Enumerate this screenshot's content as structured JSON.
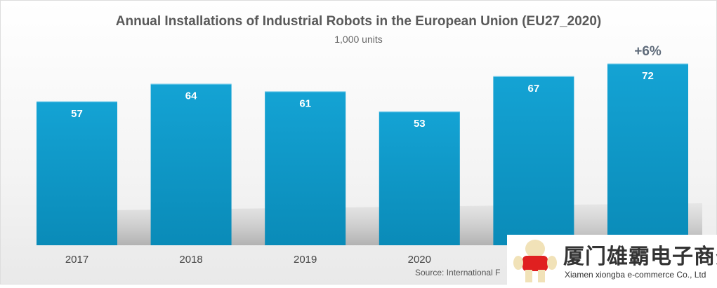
{
  "chart_data": {
    "type": "bar",
    "title": "Annual Installations of Industrial Robots in the European Union (EU27_2020)",
    "subtitle": "1,000 units",
    "categories": [
      "2017",
      "2018",
      "2019",
      "2020",
      "",
      ""
    ],
    "values": [
      57,
      64,
      61,
      53,
      67,
      72
    ],
    "annotations": [
      {
        "category_index": 5,
        "text": "+6%"
      }
    ],
    "ylim": [
      0,
      80
    ],
    "grid": false,
    "bar_color": "#0e9ccb",
    "source": "Source: International F"
  },
  "watermark": {
    "text_cn": "厦门雄霸电子商务",
    "text_en": "Xiamen xiongba e-commerce Co., Ltd"
  }
}
